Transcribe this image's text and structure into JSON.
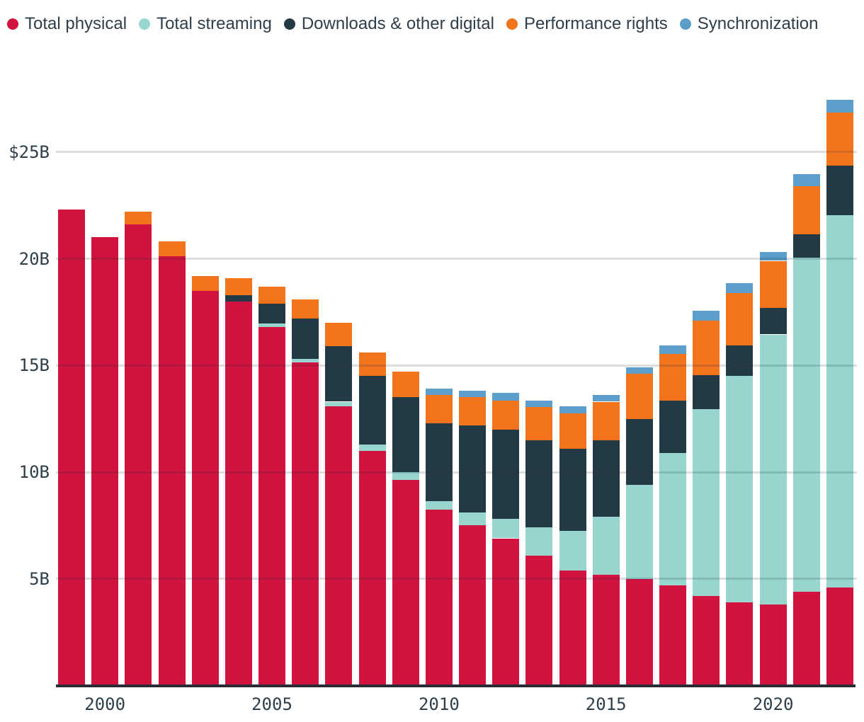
{
  "legend": {
    "items": [
      {
        "label": "Total physical",
        "color": "#d2123f"
      },
      {
        "label": "Total streaming",
        "color": "#97d5ce"
      },
      {
        "label": "Downloads & other digital",
        "color": "#233a44"
      },
      {
        "label": "Performance rights",
        "color": "#f3731d"
      },
      {
        "label": "Synchronization",
        "color": "#5b9ec9"
      }
    ]
  },
  "y_axis": {
    "labels": [
      "$25B",
      "20B",
      "15B",
      "10B",
      "5B"
    ],
    "values": [
      25,
      20,
      15,
      10,
      5
    ],
    "unit": "US$ billions"
  },
  "x_axis": {
    "tick_labels": [
      "2000",
      "2005",
      "2010",
      "2015",
      "2020"
    ],
    "tick_category_indexes": [
      1,
      6,
      11,
      16,
      21
    ]
  },
  "style": {
    "text_color": "#2e3e4a",
    "tick_color": "#2e3f4c",
    "gridline_color": "rgba(30,45,55,0.16)",
    "axis_line_color": "#2a2d31",
    "background": "#ffffff"
  },
  "chart_data": {
    "type": "bar",
    "stacked": true,
    "title": "",
    "xlabel": "",
    "ylabel": "",
    "unit": "USD billions",
    "grid": "horizontal",
    "legend_position": "top",
    "ylim": [
      0,
      27.5
    ],
    "categories": [
      1999,
      2000,
      2001,
      2002,
      2003,
      2004,
      2005,
      2006,
      2007,
      2008,
      2009,
      2010,
      2011,
      2012,
      2013,
      2014,
      2015,
      2016,
      2017,
      2018,
      2019,
      2020,
      2021,
      2022
    ],
    "series": [
      {
        "name": "Total physical",
        "color": "#d2123f",
        "values": [
          22.3,
          21.0,
          21.6,
          20.1,
          18.5,
          18.0,
          16.8,
          15.15,
          13.1,
          11.0,
          9.65,
          8.25,
          7.5,
          6.9,
          6.1,
          5.4,
          5.2,
          5.0,
          4.7,
          4.2,
          3.9,
          3.8,
          4.4,
          4.6
        ]
      },
      {
        "name": "Total streaming",
        "color": "#97d5ce",
        "values": [
          0,
          0,
          0,
          0,
          0,
          0,
          0.15,
          0.15,
          0.2,
          0.3,
          0.35,
          0.4,
          0.6,
          0.9,
          1.3,
          1.85,
          2.7,
          4.4,
          6.2,
          8.75,
          10.6,
          12.65,
          15.65,
          17.45
        ]
      },
      {
        "name": "Downloads & other digital",
        "color": "#233a44",
        "values": [
          0,
          0,
          0,
          0,
          0,
          0.3,
          0.95,
          1.9,
          2.6,
          3.2,
          3.5,
          3.65,
          4.1,
          4.2,
          4.1,
          3.85,
          3.6,
          3.1,
          2.45,
          1.6,
          1.45,
          1.25,
          1.1,
          2.3
        ]
      },
      {
        "name": "Performance rights",
        "color": "#f3731d",
        "values": [
          0,
          0,
          0.6,
          0.7,
          0.7,
          0.8,
          0.8,
          0.9,
          1.1,
          1.1,
          1.2,
          1.3,
          1.3,
          1.35,
          1.55,
          1.65,
          1.8,
          2.1,
          2.2,
          2.55,
          2.45,
          2.2,
          2.25,
          2.5
        ]
      },
      {
        "name": "Synchronization",
        "color": "#5b9ec9",
        "values": [
          0,
          0,
          0,
          0,
          0,
          0,
          0,
          0,
          0,
          0,
          0,
          0.3,
          0.3,
          0.35,
          0.3,
          0.35,
          0.3,
          0.3,
          0.4,
          0.45,
          0.45,
          0.4,
          0.55,
          0.6
        ]
      }
    ]
  }
}
